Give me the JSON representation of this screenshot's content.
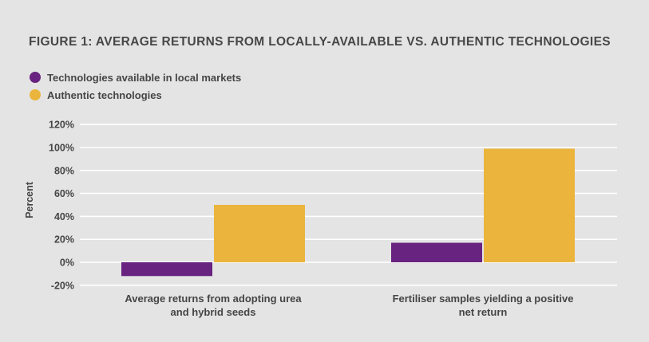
{
  "chart_data": {
    "type": "bar",
    "title": "FIGURE 1: AVERAGE RETURNS FROM LOCALLY-AVAILABLE VS. AUTHENTIC TECHNOLOGIES",
    "ylabel": "Percent",
    "xlabel": "",
    "ylim": [
      -20,
      120
    ],
    "yticks": [
      120,
      100,
      80,
      60,
      40,
      20,
      0,
      -20
    ],
    "ytick_labels": [
      "120%",
      "100%",
      "80%",
      "60%",
      "40%",
      "20%",
      "0%",
      "-20%"
    ],
    "grid": true,
    "legend_position": "top-left",
    "categories": [
      [
        "Average returns from adopting urea",
        "and hybrid seeds"
      ],
      [
        "Fertiliser samples yielding a positive",
        "net return"
      ]
    ],
    "series": [
      {
        "name": "Technologies available in local markets",
        "color": "#68227f",
        "values": [
          -12,
          17
        ]
      },
      {
        "name": "Authentic technologies",
        "color": "#ebb43c",
        "values": [
          50,
          99
        ]
      }
    ]
  }
}
